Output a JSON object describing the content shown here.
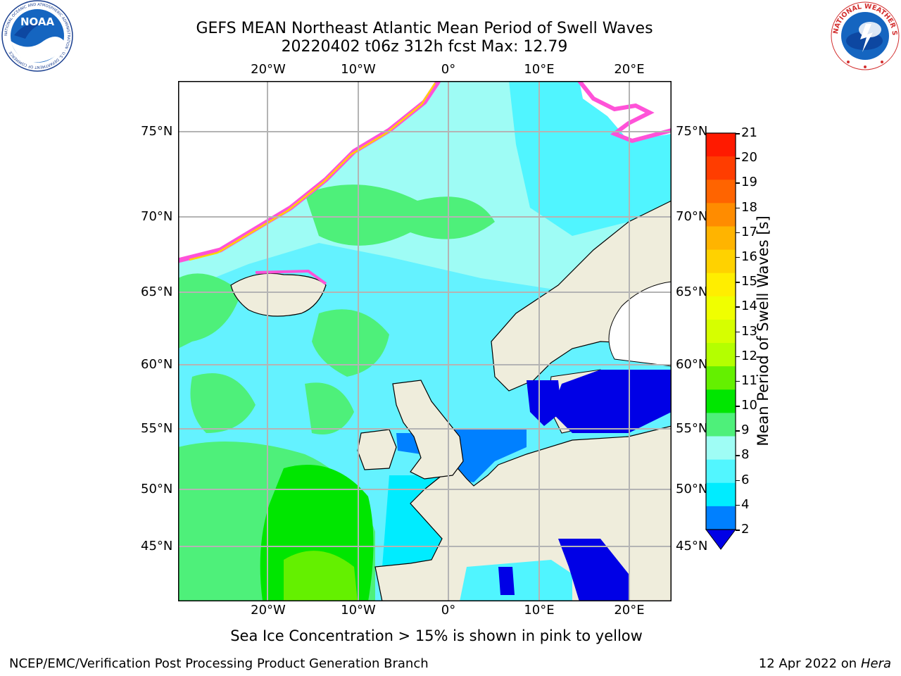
{
  "header": {
    "title_line1": "GEFS MEAN Northeast Atlantic Mean Period of Swell Waves",
    "title_line2": "20220402 t06z 312h fcst   Max: 12.79"
  },
  "logos": {
    "left": {
      "text": "NOAA",
      "ring_text": "NATIONAL OCEANIC AND ATMOSPHERIC ADMINISTRATION · U.S. DEPARTMENT OF COMMERCE"
    },
    "right": {
      "ring_text": "NATIONAL WEATHER SERVICE"
    }
  },
  "map": {
    "lon_labels": [
      "20°W",
      "10°W",
      "0°",
      "10°E",
      "20°E"
    ],
    "lat_labels": [
      "75°N",
      "70°N",
      "65°N",
      "60°N",
      "55°N",
      "50°N",
      "45°N"
    ]
  },
  "colorbar": {
    "label": "Mean Period of Swell Waves [s]",
    "ticks": [
      "21",
      "20",
      "19",
      "18",
      "17",
      "16",
      "15",
      "14",
      "13",
      "12",
      "11",
      "10",
      "9",
      "8",
      "6",
      "4",
      "2"
    ],
    "colors": [
      "#ff1a00",
      "#ff3d00",
      "#ff6400",
      "#ff8c00",
      "#ffb400",
      "#ffd200",
      "#ffee00",
      "#f0ff00",
      "#d6ff00",
      "#b4ff00",
      "#64f000",
      "#00e600",
      "#4ef07a",
      "#9ffdf5",
      "#52f6ff",
      "#00ecff",
      "#0080ff"
    ],
    "extend_color": "#0000e6"
  },
  "footer": {
    "ice_note": "Sea Ice Concentration > 15% is shown in pink to yellow",
    "credit": "NCEP/EMC/Verification Post Processing Product Generation Branch",
    "date_prefix": "12 Apr 2022 on ",
    "date_machine": "Hera"
  }
}
